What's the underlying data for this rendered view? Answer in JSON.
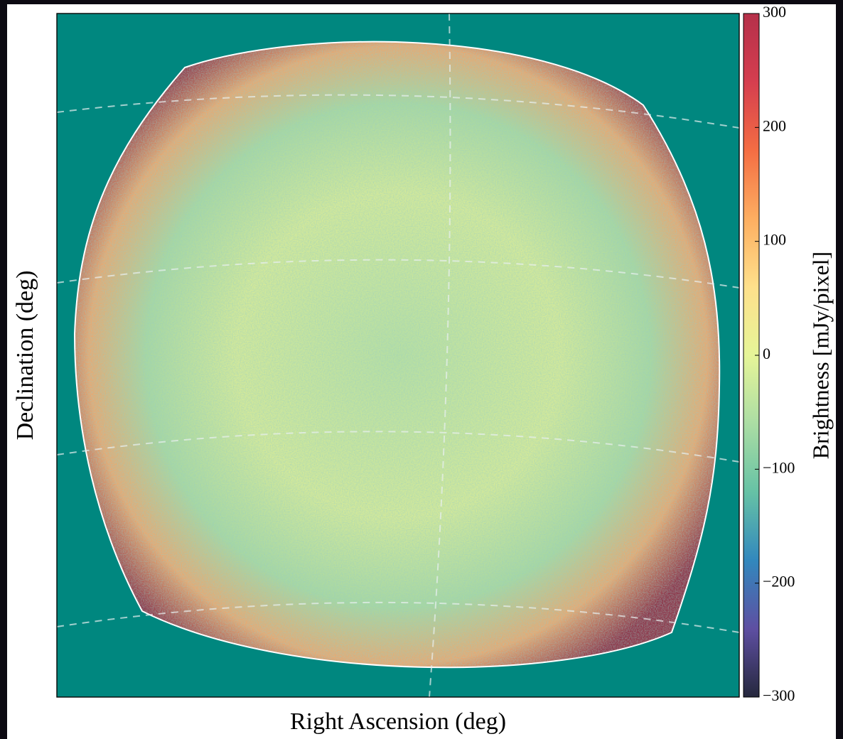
{
  "chart_data": {
    "type": "image",
    "xlabel": "Right Ascension (deg)",
    "ylabel": "Declination (deg)",
    "background": "#00877f",
    "colorbar": {
      "label": "Brightness [mJy/pixel]",
      "lim": [
        -300,
        300
      ],
      "ticks": [
        300,
        200,
        100,
        0,
        {
          "value": -100,
          "label": "−100"
        },
        {
          "value": -200,
          "label": "−200"
        },
        {
          "value": -300,
          "label": "−300"
        }
      ],
      "colors": [
        "#25283d",
        "#5e4fa2",
        "#3288bd",
        "#66c2a5",
        "#abdda4",
        "#e6f598",
        "#fee08b",
        "#fdae61",
        "#f46d43",
        "#d53e4f",
        "#b5304a"
      ]
    }
  }
}
